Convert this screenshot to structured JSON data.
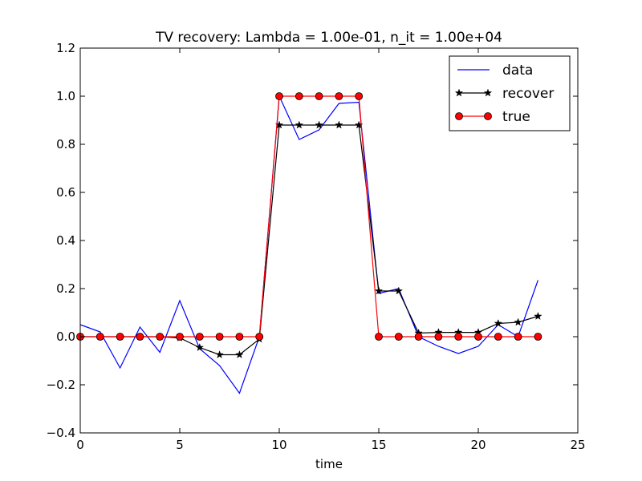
{
  "chart_data": {
    "type": "line",
    "title": "TV recovery: Lambda = 1.00e-01, n_it = 1.00e+04",
    "xlabel": "time",
    "ylabel": "",
    "xlim": [
      0,
      25
    ],
    "ylim": [
      -0.4,
      1.2
    ],
    "xticks": [
      0,
      5,
      10,
      15,
      20,
      25
    ],
    "xtick_labels": [
      "0",
      "5",
      "10",
      "15",
      "20",
      "25"
    ],
    "yticks": [
      -0.4,
      -0.2,
      0.0,
      0.2,
      0.4,
      0.6,
      0.8,
      1.0,
      1.2
    ],
    "ytick_labels": [
      "−0.4",
      "−0.2",
      "0.0",
      "0.2",
      "0.4",
      "0.6",
      "0.8",
      "1.0",
      "1.2"
    ],
    "grid": false,
    "legend_position": "top-right",
    "x": [
      0,
      1,
      2,
      3,
      4,
      5,
      6,
      7,
      8,
      9,
      10,
      11,
      12,
      13,
      14,
      15,
      16,
      17,
      18,
      19,
      20,
      21,
      22,
      23
    ],
    "series": [
      {
        "name": "data",
        "color": "#0000ff",
        "marker": "none",
        "values": [
          0.05,
          0.02,
          -0.13,
          0.04,
          -0.065,
          0.15,
          -0.05,
          -0.12,
          -0.235,
          0.0,
          1.0,
          0.82,
          0.86,
          0.97,
          0.975,
          0.18,
          0.2,
          0.0,
          -0.04,
          -0.07,
          -0.04,
          0.05,
          0.0,
          0.235
        ]
      },
      {
        "name": "recover",
        "color": "#000000",
        "marker": "star",
        "values": [
          0.0,
          0.0,
          0.0,
          0.0,
          0.0,
          -0.005,
          -0.045,
          -0.075,
          -0.075,
          -0.01,
          0.88,
          0.88,
          0.88,
          0.88,
          0.88,
          0.19,
          0.19,
          0.015,
          0.018,
          0.018,
          0.018,
          0.055,
          0.06,
          0.085
        ]
      },
      {
        "name": "true",
        "color": "#ff0000",
        "marker": "circle",
        "values": [
          0,
          0,
          0,
          0,
          0,
          0,
          0,
          0,
          0,
          0,
          1,
          1,
          1,
          1,
          1,
          0,
          0,
          0,
          0,
          0,
          0,
          0,
          0,
          0
        ]
      }
    ]
  }
}
